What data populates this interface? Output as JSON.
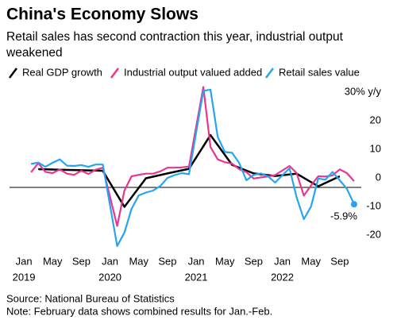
{
  "chart_data": {
    "type": "line",
    "title": "China's Economy Slows",
    "subtitle": [
      "Retail sales has second contraction this year, industrial output",
      "weakened"
    ],
    "source": "Source: National Bureau of Statistics",
    "note": "Note: February data shows combined results for Jan.-Feb.",
    "xlim": [
      "2018-11",
      "2022-12"
    ],
    "ylim": [
      -25,
      35
    ],
    "yticks": [
      {
        "value": 30,
        "label": "30% y/y"
      },
      20,
      10,
      0,
      -10,
      -20
    ],
    "grid": false,
    "xticks": [
      {
        "value": "2019-01",
        "label": "Jan"
      },
      {
        "value": "2019-05",
        "label": "May"
      },
      {
        "value": "2019-09",
        "label": "Sep"
      },
      {
        "value": "2020-01",
        "label": "Jan"
      },
      {
        "value": "2020-05",
        "label": "May"
      },
      {
        "value": "2020-09",
        "label": "Sep"
      },
      {
        "value": "2021-01",
        "label": "Jan"
      },
      {
        "value": "2021-05",
        "label": "May"
      },
      {
        "value": "2021-09",
        "label": "Sep"
      },
      {
        "value": "2022-01",
        "label": "Jan"
      },
      {
        "value": "2022-05",
        "label": "May"
      },
      {
        "value": "2022-09",
        "label": "Sep"
      }
    ],
    "xtick_years": [
      {
        "value": "2019-01",
        "label": "2019"
      },
      {
        "value": "2020-01",
        "label": "2020"
      },
      {
        "value": "2021-01",
        "label": "2021"
      },
      {
        "value": "2022-01",
        "label": "2022"
      }
    ],
    "legend": "top-left",
    "series": [
      {
        "name": "Real GDP growth",
        "color": "#000000",
        "x": [
          "2019-03",
          "2019-06",
          "2019-09",
          "2019-12",
          "2020-03",
          "2020-06",
          "2020-09",
          "2020-12",
          "2021-03",
          "2021-06",
          "2021-09",
          "2021-12",
          "2022-03",
          "2022-06",
          "2022-09"
        ],
        "values": [
          6.4,
          6.2,
          6.0,
          5.8,
          -6.8,
          3.2,
          4.9,
          6.5,
          18.3,
          7.9,
          4.9,
          4.0,
          4.8,
          0.4,
          3.9
        ]
      },
      {
        "name": "Industrial output valued added",
        "color": "#e8368f",
        "x": [
          "2019-02",
          "2019-03",
          "2019-04",
          "2019-05",
          "2019-06",
          "2019-07",
          "2019-08",
          "2019-09",
          "2019-10",
          "2019-11",
          "2019-12",
          "2020-02",
          "2020-03",
          "2020-04",
          "2020-05",
          "2020-06",
          "2020-07",
          "2020-08",
          "2020-09",
          "2020-10",
          "2020-11",
          "2020-12",
          "2021-02",
          "2021-03",
          "2021-04",
          "2021-05",
          "2021-06",
          "2021-07",
          "2021-08",
          "2021-09",
          "2021-10",
          "2021-11",
          "2021-12",
          "2022-02",
          "2022-03",
          "2022-04",
          "2022-05",
          "2022-06",
          "2022-07",
          "2022-08",
          "2022-09",
          "2022-10",
          "2022-11"
        ],
        "values": [
          5.3,
          8.5,
          5.4,
          5.0,
          6.3,
          4.8,
          4.4,
          5.8,
          4.7,
          6.2,
          6.9,
          -13.5,
          -1.1,
          3.9,
          4.4,
          4.8,
          4.8,
          5.6,
          6.9,
          6.9,
          7.0,
          7.3,
          35.1,
          14.1,
          9.8,
          8.8,
          8.3,
          6.4,
          5.3,
          3.1,
          3.5,
          3.8,
          4.3,
          7.5,
          5.0,
          -2.9,
          0.7,
          3.9,
          3.8,
          4.2,
          6.3,
          5.0,
          2.2
        ]
      },
      {
        "name": "Retail sales value",
        "color": "#27a4f0",
        "x": [
          "2019-02",
          "2019-03",
          "2019-04",
          "2019-05",
          "2019-06",
          "2019-07",
          "2019-08",
          "2019-09",
          "2019-10",
          "2019-11",
          "2019-12",
          "2020-02",
          "2020-03",
          "2020-04",
          "2020-05",
          "2020-06",
          "2020-07",
          "2020-08",
          "2020-09",
          "2020-10",
          "2020-11",
          "2020-12",
          "2021-02",
          "2021-03",
          "2021-04",
          "2021-05",
          "2021-06",
          "2021-07",
          "2021-08",
          "2021-09",
          "2021-10",
          "2021-11",
          "2021-12",
          "2022-02",
          "2022-03",
          "2022-04",
          "2022-05",
          "2022-06",
          "2022-07",
          "2022-08",
          "2022-09",
          "2022-10",
          "2022-11"
        ],
        "values": [
          8.2,
          8.7,
          7.2,
          8.6,
          9.8,
          7.6,
          7.5,
          7.8,
          7.2,
          8.0,
          8.0,
          -20.5,
          -15.8,
          -7.5,
          -2.8,
          -1.8,
          -1.1,
          0.5,
          3.3,
          4.3,
          5.0,
          4.6,
          33.8,
          34.2,
          17.7,
          12.4,
          12.1,
          8.5,
          2.5,
          4.4,
          4.9,
          3.9,
          1.7,
          6.7,
          -3.5,
          -11.1,
          -6.7,
          3.1,
          2.7,
          5.4,
          2.5,
          -0.5,
          -5.9
        ],
        "value_labels": [
          null,
          null,
          null,
          null,
          null,
          null,
          null,
          null,
          null,
          null,
          null,
          null,
          null,
          null,
          null,
          null,
          null,
          null,
          null,
          null,
          null,
          null,
          null,
          null,
          null,
          null,
          null,
          null,
          null,
          null,
          null,
          null,
          null,
          null,
          null,
          null,
          null,
          null,
          null,
          null,
          null,
          null,
          "-5.9%"
        ]
      }
    ]
  }
}
